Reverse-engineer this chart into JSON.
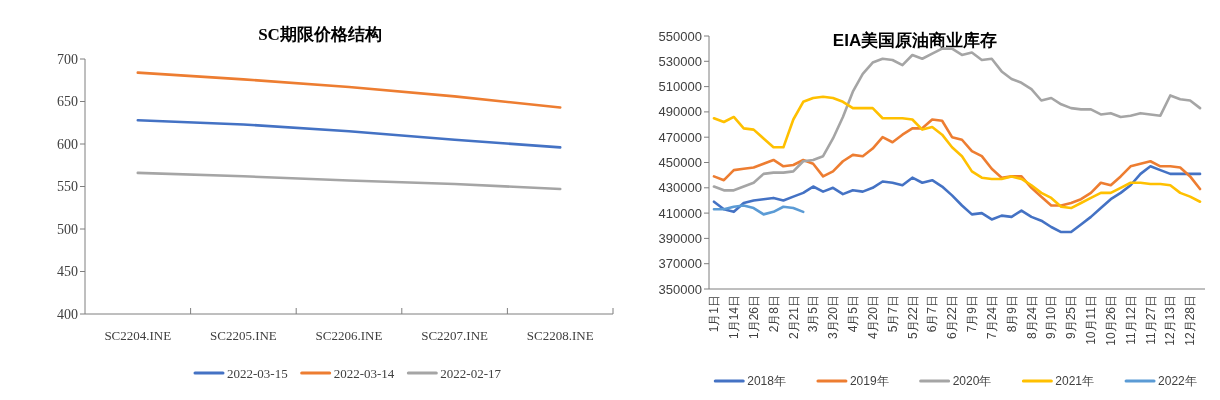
{
  "chart_data": [
    {
      "type": "line",
      "title": "SC期限价格结构",
      "categories": [
        "SC2204.INE",
        "SC2205.INE",
        "SC2206.INE",
        "SC2207.INE",
        "SC2208.INE"
      ],
      "ylim": [
        400,
        700
      ],
      "yticks": [
        400,
        450,
        500,
        550,
        600,
        650,
        700
      ],
      "legend": "bottom",
      "series": [
        {
          "name": "2022-03-15",
          "color": "#4472c4",
          "values": [
            628,
            623,
            615,
            605,
            596
          ]
        },
        {
          "name": "2022-03-14",
          "color": "#ed7d31",
          "values": [
            684,
            676,
            667,
            656,
            643
          ]
        },
        {
          "name": "2022-02-17",
          "color": "#a5a5a5",
          "values": [
            566,
            562,
            557,
            553,
            547
          ]
        }
      ]
    },
    {
      "type": "line",
      "title": "EIA美国原油商业库存",
      "categories": [
        "1月1日",
        null,
        "1月14日",
        null,
        "1月26日",
        null,
        "2月8日",
        null,
        "2月21日",
        null,
        "3月5日",
        null,
        "3月20日",
        null,
        "4月5日",
        null,
        "4月20日",
        null,
        "5月7日",
        null,
        "5月22日",
        null,
        "6月7日",
        null,
        "6月22日",
        null,
        "7月9日",
        null,
        "7月24日",
        null,
        "8月9日",
        null,
        "8月24日",
        null,
        "9月10日",
        null,
        "9月25日",
        null,
        "10月11日",
        null,
        "10月26日",
        null,
        "11月12日",
        null,
        "11月27日",
        null,
        "12月13日",
        null,
        "12月28日",
        null
      ],
      "ylim": [
        350000,
        550000
      ],
      "yticks": [
        350000,
        370000,
        390000,
        410000,
        430000,
        450000,
        470000,
        490000,
        510000,
        530000,
        550000
      ],
      "legend": "bottom",
      "series": [
        {
          "name": "2018年",
          "color": "#4472c4",
          "values": [
            419000,
            413000,
            411000,
            418000,
            420000,
            421000,
            422000,
            420000,
            423000,
            426000,
            431000,
            427000,
            430000,
            425000,
            428000,
            427000,
            430000,
            435000,
            434000,
            432000,
            438000,
            434000,
            436000,
            431000,
            424000,
            416000,
            409000,
            410000,
            405000,
            408000,
            407000,
            412000,
            407000,
            404000,
            399000,
            395000,
            395000,
            401000,
            407000,
            414000,
            421000,
            426000,
            432000,
            441000,
            447000,
            444000,
            441000,
            441000,
            441000,
            441000
          ]
        },
        {
          "name": "2019年",
          "color": "#ed7d31",
          "values": [
            439000,
            436000,
            444000,
            445000,
            446000,
            449000,
            452000,
            447000,
            448000,
            452000,
            449000,
            439000,
            443000,
            451000,
            456000,
            455000,
            461000,
            470000,
            466000,
            472000,
            477000,
            477000,
            484000,
            483000,
            470000,
            468000,
            459000,
            455000,
            445000,
            438000,
            439000,
            439000,
            430000,
            423000,
            416000,
            416000,
            418000,
            421000,
            426000,
            434000,
            432000,
            439000,
            447000,
            449000,
            451000,
            447000,
            447000,
            446000,
            439000,
            429000
          ]
        },
        {
          "name": "2020年",
          "color": "#a5a5a5",
          "values": [
            431000,
            428000,
            428000,
            431000,
            434000,
            441000,
            442000,
            442000,
            443000,
            451000,
            452000,
            455000,
            469000,
            486000,
            506000,
            520000,
            529000,
            532000,
            531000,
            527000,
            535000,
            532000,
            536000,
            540000,
            540000,
            535000,
            537000,
            531000,
            532000,
            522000,
            516000,
            513000,
            508000,
            499000,
            501000,
            496000,
            493000,
            492000,
            492000,
            488000,
            489000,
            486000,
            487000,
            489000,
            488000,
            487000,
            503000,
            500000,
            499000,
            493000
          ]
        },
        {
          "name": "2021年",
          "color": "#ffc000",
          "values": [
            485000,
            482000,
            486000,
            477000,
            476000,
            469000,
            462000,
            462000,
            484000,
            498000,
            501000,
            502000,
            501000,
            498000,
            493000,
            493000,
            493000,
            485000,
            485000,
            485000,
            484000,
            476000,
            478000,
            472000,
            462000,
            455000,
            443000,
            438000,
            437000,
            437000,
            439000,
            437000,
            432000,
            426000,
            422000,
            415000,
            414000,
            418000,
            422000,
            426000,
            426000,
            430000,
            434000,
            434000,
            433000,
            433000,
            432000,
            426000,
            423000,
            419000
          ]
        },
        {
          "name": "2022年",
          "color": "#5b9bd5",
          "values": [
            413000,
            413000,
            415000,
            416000,
            414000,
            409000,
            411000,
            415000,
            414000,
            411000,
            null,
            null,
            null,
            null,
            null,
            null,
            null,
            null,
            null,
            null,
            null,
            null,
            null,
            null,
            null,
            null,
            null,
            null,
            null,
            null,
            null,
            null,
            null,
            null,
            null,
            null,
            null,
            null,
            null,
            null,
            null,
            null,
            null,
            null,
            null,
            null,
            null,
            null,
            null,
            null
          ]
        }
      ]
    }
  ]
}
